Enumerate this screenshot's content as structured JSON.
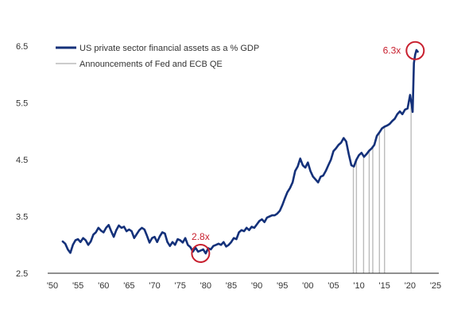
{
  "chart_data": {
    "type": "line",
    "title": "",
    "xlabel": "",
    "ylabel": "",
    "xlim": [
      1950,
      2025
    ],
    "ylim": [
      2.5,
      6.5
    ],
    "grid": false,
    "legend_position": "top-left",
    "x_tick_labels": [
      "'50",
      "'55",
      "'60",
      "'65",
      "'70",
      "'75",
      "'80",
      "'85",
      "'90",
      "'95",
      "'00",
      "'05",
      "'10",
      "'15",
      "'20",
      "'25"
    ],
    "x_tick_values": [
      1950,
      1955,
      1960,
      1965,
      1970,
      1975,
      1980,
      1985,
      1990,
      1995,
      2000,
      2005,
      2010,
      2015,
      2020,
      2025
    ],
    "y_tick_labels": [
      "2.5",
      "3.5",
      "4.5",
      "5.5",
      "6.5"
    ],
    "y_tick_values": [
      2.5,
      3.5,
      4.5,
      5.5,
      6.5
    ],
    "series": [
      {
        "name": "US private sector financial assets as a % GDP",
        "color": "#14317a",
        "x": [
          1952.0,
          1952.5,
          1953.0,
          1953.5,
          1954.0,
          1954.5,
          1955.0,
          1955.5,
          1956.0,
          1956.5,
          1957.0,
          1957.5,
          1958.0,
          1958.5,
          1959.0,
          1959.5,
          1960.0,
          1960.5,
          1961.0,
          1961.5,
          1962.0,
          1962.5,
          1963.0,
          1963.5,
          1964.0,
          1964.5,
          1965.0,
          1965.5,
          1966.0,
          1966.5,
          1967.0,
          1967.5,
          1968.0,
          1968.5,
          1969.0,
          1969.5,
          1970.0,
          1970.5,
          1971.0,
          1971.5,
          1972.0,
          1972.5,
          1973.0,
          1973.5,
          1974.0,
          1974.5,
          1975.0,
          1975.5,
          1976.0,
          1976.5,
          1977.0,
          1977.5,
          1978.0,
          1978.5,
          1979.0,
          1979.5,
          1980.0,
          1980.5,
          1981.0,
          1981.5,
          1982.0,
          1982.5,
          1983.0,
          1983.5,
          1984.0,
          1984.5,
          1985.0,
          1985.5,
          1986.0,
          1986.5,
          1987.0,
          1987.5,
          1988.0,
          1988.5,
          1989.0,
          1989.5,
          1990.0,
          1990.5,
          1991.0,
          1991.5,
          1992.0,
          1992.5,
          1993.0,
          1993.5,
          1994.0,
          1994.5,
          1995.0,
          1995.5,
          1996.0,
          1996.5,
          1997.0,
          1997.5,
          1998.0,
          1998.5,
          1999.0,
          1999.5,
          2000.0,
          2000.5,
          2001.0,
          2001.5,
          2002.0,
          2002.5,
          2003.0,
          2003.5,
          2004.0,
          2004.5,
          2005.0,
          2005.5,
          2006.0,
          2006.5,
          2007.0,
          2007.5,
          2008.0,
          2008.5,
          2009.0,
          2009.5,
          2010.0,
          2010.5,
          2011.0,
          2011.5,
          2012.0,
          2012.5,
          2013.0,
          2013.5,
          2014.0,
          2014.5,
          2015.0,
          2015.5,
          2016.0,
          2016.5,
          2017.0,
          2017.5,
          2018.0,
          2018.5,
          2019.0,
          2019.5,
          2020.0,
          2020.25,
          2020.5,
          2020.75,
          2021.0,
          2021.25,
          2021.5
        ],
        "y": [
          3.06,
          3.02,
          2.92,
          2.86,
          3.0,
          3.08,
          3.1,
          3.05,
          3.12,
          3.08,
          3.0,
          3.06,
          3.18,
          3.22,
          3.3,
          3.25,
          3.22,
          3.3,
          3.35,
          3.24,
          3.14,
          3.26,
          3.34,
          3.3,
          3.32,
          3.24,
          3.27,
          3.24,
          3.12,
          3.19,
          3.26,
          3.3,
          3.27,
          3.16,
          3.04,
          3.12,
          3.14,
          3.05,
          3.15,
          3.22,
          3.2,
          3.05,
          2.98,
          3.05,
          3.0,
          3.1,
          3.08,
          3.04,
          3.12,
          3.0,
          2.96,
          2.88,
          2.95,
          2.88,
          2.9,
          2.92,
          2.85,
          2.94,
          2.92,
          2.98,
          3.0,
          3.02,
          3.0,
          3.05,
          2.97,
          3.0,
          3.05,
          3.12,
          3.1,
          3.22,
          3.26,
          3.24,
          3.3,
          3.26,
          3.32,
          3.3,
          3.36,
          3.42,
          3.45,
          3.4,
          3.48,
          3.5,
          3.52,
          3.52,
          3.55,
          3.6,
          3.7,
          3.82,
          3.93,
          4.0,
          4.1,
          4.3,
          4.38,
          4.52,
          4.4,
          4.36,
          4.45,
          4.3,
          4.2,
          4.15,
          4.1,
          4.2,
          4.22,
          4.3,
          4.4,
          4.5,
          4.65,
          4.7,
          4.76,
          4.8,
          4.88,
          4.82,
          4.6,
          4.4,
          4.38,
          4.5,
          4.58,
          4.62,
          4.55,
          4.6,
          4.66,
          4.7,
          4.76,
          4.92,
          4.98,
          5.05,
          5.08,
          5.1,
          5.13,
          5.18,
          5.22,
          5.3,
          5.35,
          5.3,
          5.38,
          5.4,
          5.64,
          5.5,
          5.34,
          6.2,
          6.35,
          6.43,
          6.4
        ]
      },
      {
        "name": "Announcements of Fed and ECB QE",
        "color": "#bbbbbb",
        "x": [
          2008.9,
          2009.5,
          2010.9,
          2012.0,
          2012.7,
          2014.0,
          2015.0,
          2020.2
        ]
      }
    ],
    "annotations": [
      {
        "label": "2.8x",
        "x": 1979.0,
        "y": 2.85,
        "color": "#c8202f"
      },
      {
        "label": "6.3x",
        "x": 2021.0,
        "y": 6.42,
        "color": "#c8202f"
      }
    ]
  }
}
